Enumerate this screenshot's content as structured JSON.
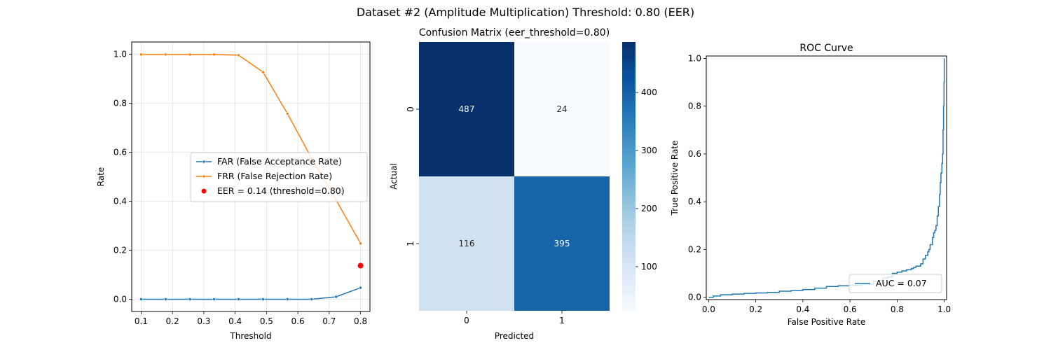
{
  "figure": {
    "suptitle": "Dataset #2 (Amplitude Multiplication)    Threshold: 0.80 (EER)"
  },
  "colors": {
    "far": "#1f77b4",
    "frr": "#ff7f0e",
    "eer": "#ff0000",
    "roc": "#1f77b4",
    "cm_dark": "#08306b",
    "cm_light": "#f7fbff"
  },
  "chart_data": [
    {
      "type": "line",
      "xlabel": "Threshold",
      "ylabel": "Rate",
      "xlim": [
        0.07,
        0.83
      ],
      "ylim": [
        -0.05,
        1.05
      ],
      "grid": true,
      "legend_position": "center-right",
      "xticks": [
        "0.1",
        "0.2",
        "0.3",
        "0.4",
        "0.5",
        "0.6",
        "0.7",
        "0.8"
      ],
      "yticks": [
        "0.0",
        "0.2",
        "0.4",
        "0.6",
        "0.8",
        "1.0"
      ],
      "x": [
        0.1,
        0.178,
        0.256,
        0.333,
        0.411,
        0.489,
        0.567,
        0.644,
        0.722,
        0.8
      ],
      "series": [
        {
          "name": "FAR (False Acceptance Rate)",
          "values": [
            0.0,
            0.0,
            0.0,
            0.0,
            0.0,
            0.0,
            0.0,
            0.0,
            0.01,
            0.047
          ]
        },
        {
          "name": "FRR (False Rejection Rate)",
          "values": [
            0.999,
            0.999,
            0.999,
            0.999,
            0.996,
            0.927,
            0.757,
            0.575,
            0.405,
            0.228
          ]
        }
      ],
      "eer": {
        "label": "EER = 0.14 (threshold=0.80)",
        "x": 0.8,
        "y": 0.137
      }
    },
    {
      "type": "heatmap",
      "title": "Confusion Matrix (eer_threshold=0.80)",
      "xlabel": "Predicted",
      "ylabel": "Actual",
      "xticks": [
        "0",
        "1"
      ],
      "yticks": [
        "0",
        "1"
      ],
      "matrix": [
        [
          487,
          24
        ],
        [
          116,
          395
        ]
      ],
      "colorbar": {
        "min": 24,
        "max": 487,
        "ticks": [
          "100",
          "200",
          "300",
          "400"
        ]
      }
    },
    {
      "type": "line",
      "title": "ROC Curve",
      "xlabel": "False Positive Rate",
      "ylabel": "True Positive Rate",
      "xlim": [
        -0.01,
        1.01
      ],
      "ylim": [
        -0.01,
        1.01
      ],
      "xticks": [
        "0.0",
        "0.2",
        "0.4",
        "0.6",
        "0.8",
        "1.0"
      ],
      "yticks": [
        "0.0",
        "0.2",
        "0.4",
        "0.6",
        "0.8",
        "1.0"
      ],
      "legend_position": "lower-right",
      "series": [
        {
          "name": "AUC = 0.07",
          "fpr": [
            0.0,
            0.02,
            0.05,
            0.1,
            0.15,
            0.2,
            0.25,
            0.3,
            0.35,
            0.4,
            0.45,
            0.5,
            0.55,
            0.6,
            0.65,
            0.7,
            0.72,
            0.74,
            0.76,
            0.78,
            0.8,
            0.82,
            0.84,
            0.86,
            0.87,
            0.88,
            0.9,
            0.91,
            0.92,
            0.93,
            0.935,
            0.94,
            0.95,
            0.955,
            0.96,
            0.965,
            0.97,
            0.975,
            0.98,
            0.983,
            0.986,
            0.99,
            0.993,
            0.995,
            0.997,
            0.999,
            1.0
          ],
          "tpr": [
            0.0,
            0.005,
            0.01,
            0.013,
            0.016,
            0.018,
            0.02,
            0.025,
            0.028,
            0.032,
            0.038,
            0.045,
            0.048,
            0.05,
            0.055,
            0.065,
            0.07,
            0.08,
            0.085,
            0.1,
            0.105,
            0.11,
            0.115,
            0.12,
            0.125,
            0.13,
            0.14,
            0.16,
            0.175,
            0.19,
            0.2,
            0.22,
            0.25,
            0.27,
            0.28,
            0.3,
            0.34,
            0.38,
            0.43,
            0.48,
            0.52,
            0.56,
            0.6,
            0.7,
            0.8,
            0.9,
            1.0
          ]
        }
      ]
    }
  ]
}
